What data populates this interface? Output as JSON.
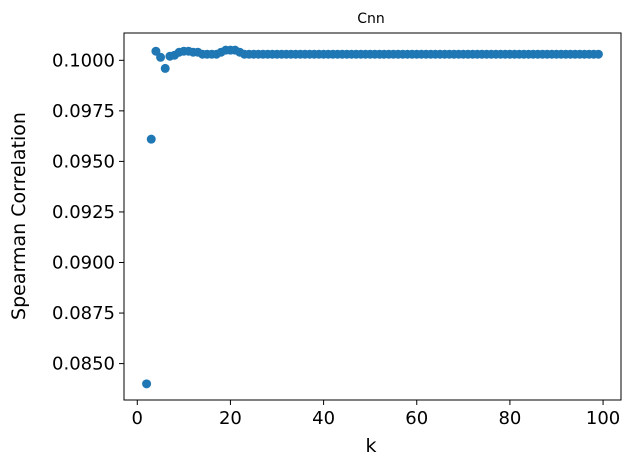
{
  "chart_data": {
    "type": "scatter",
    "title": "Cnn",
    "xlabel": "k",
    "ylabel": "Spearman Correlation",
    "xlim": [
      -2.85,
      103.85
    ],
    "ylim": [
      0.0832,
      0.10135
    ],
    "xticks": [
      0,
      20,
      40,
      60,
      80,
      100
    ],
    "xtick_labels": [
      "0",
      "20",
      "40",
      "60",
      "80",
      "100"
    ],
    "yticks": [
      0.085,
      0.0875,
      0.09,
      0.0925,
      0.095,
      0.0975,
      0.1
    ],
    "ytick_labels": [
      "0.0850",
      "0.0875",
      "0.0900",
      "0.0925",
      "0.0950",
      "0.0975",
      "0.1000"
    ],
    "grid": false,
    "marker_color": "#1f77b4",
    "series": [
      {
        "x": [
          2,
          3,
          4,
          5,
          6,
          7,
          8,
          9,
          10,
          11,
          12,
          13,
          14,
          15,
          16,
          17,
          18,
          19,
          20,
          21,
          22,
          23,
          24,
          25,
          26,
          27,
          28,
          29,
          30,
          31,
          32,
          33,
          34,
          35,
          36,
          37,
          38,
          39,
          40,
          41,
          42,
          43,
          44,
          45,
          46,
          47,
          48,
          49,
          50,
          51,
          52,
          53,
          54,
          55,
          56,
          57,
          58,
          59,
          60,
          61,
          62,
          63,
          64,
          65,
          66,
          67,
          68,
          69,
          70,
          71,
          72,
          73,
          74,
          75,
          76,
          77,
          78,
          79,
          80,
          81,
          82,
          83,
          84,
          85,
          86,
          87,
          88,
          89,
          90,
          91,
          92,
          93,
          94,
          95,
          96,
          97,
          98,
          99
        ],
        "y": [
          0.084,
          0.0961,
          0.10045,
          0.10015,
          0.0996,
          0.1002,
          0.10025,
          0.1004,
          0.10045,
          0.10045,
          0.1004,
          0.1004,
          0.1003,
          0.1003,
          0.1003,
          0.1003,
          0.1004,
          0.1005,
          0.1005,
          0.1005,
          0.1004,
          0.1003,
          0.1003,
          0.1003,
          0.1003,
          0.1003,
          0.1003,
          0.1003,
          0.1003,
          0.1003,
          0.1003,
          0.1003,
          0.1003,
          0.1003,
          0.1003,
          0.1003,
          0.1003,
          0.1003,
          0.1003,
          0.1003,
          0.1003,
          0.1003,
          0.1003,
          0.1003,
          0.1003,
          0.1003,
          0.1003,
          0.1003,
          0.1003,
          0.1003,
          0.1003,
          0.1003,
          0.1003,
          0.1003,
          0.1003,
          0.1003,
          0.1003,
          0.1003,
          0.1003,
          0.1003,
          0.1003,
          0.1003,
          0.1003,
          0.1003,
          0.1003,
          0.1003,
          0.1003,
          0.1003,
          0.1003,
          0.1003,
          0.1003,
          0.1003,
          0.1003,
          0.1003,
          0.1003,
          0.1003,
          0.1003,
          0.1003,
          0.1003,
          0.1003,
          0.1003,
          0.1003,
          0.1003,
          0.1003,
          0.1003,
          0.1003,
          0.1003,
          0.1003,
          0.1003,
          0.1003,
          0.1003,
          0.1003,
          0.1003,
          0.1003,
          0.1003,
          0.1003,
          0.1003,
          0.1003
        ]
      }
    ]
  }
}
